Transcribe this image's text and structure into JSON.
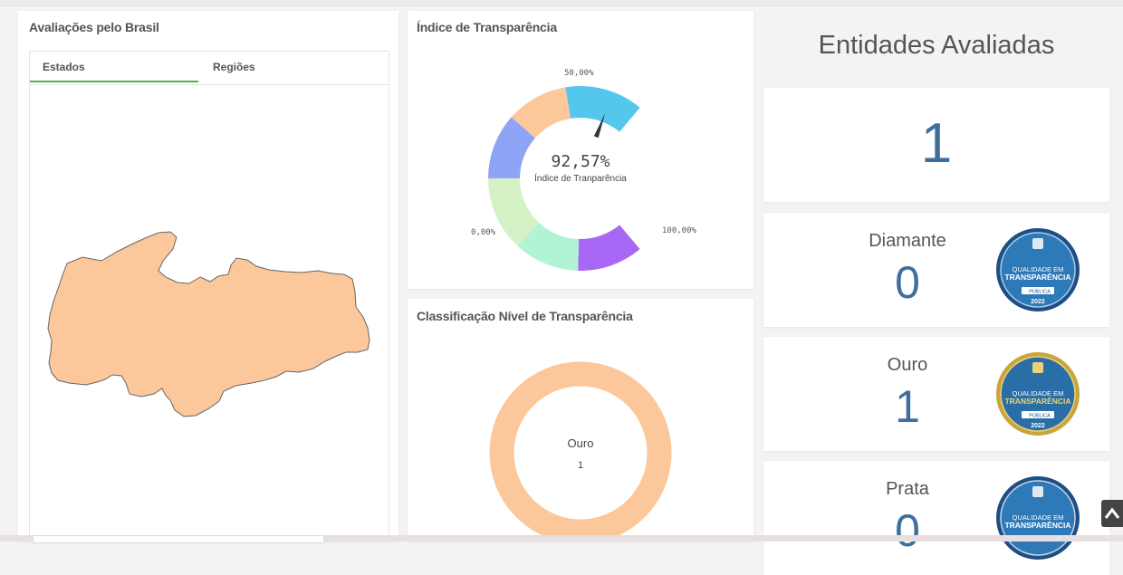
{
  "map_card": {
    "title": "Avaliações pelo Brasil",
    "tabs": [
      {
        "label": "Estados",
        "active": true
      },
      {
        "label": "Regiões",
        "active": false
      }
    ],
    "state_fill": "#fcc89b"
  },
  "gauge_card": {
    "title": "Índice de Transparência",
    "value_text": "92,57%",
    "value": 92.57,
    "subtitle": "Índice de Tranparência",
    "tick_min": "0,00%",
    "tick_mid": "50,00%",
    "tick_max": "100,00%",
    "segment_colors": [
      "#a868f5",
      "#b1f4d4",
      "#d5f2c6",
      "#8ea5f5",
      "#fcc89b",
      "#54c8ec"
    ]
  },
  "donut_card": {
    "title": "Classificação Nível de Transparência",
    "center_label": "Ouro",
    "center_value": "1",
    "ring_color": "#fcc89b"
  },
  "entities": {
    "title": "Entidades Avaliadas",
    "total": "1",
    "levels": [
      {
        "name": "Diamante",
        "count": "0",
        "badge": "diamond-badge"
      },
      {
        "name": "Ouro",
        "count": "1",
        "badge": "gold-badge"
      },
      {
        "name": "Prata",
        "count": "0",
        "badge": "silver-badge"
      }
    ],
    "badge_text": {
      "line1": "QUALIDADE EM",
      "line2": "TRANSPARÊNCIA",
      "line3": "PÚBLICA",
      "year": "2022"
    }
  },
  "colors": {
    "accent_number": "#3f6f9e",
    "tab_underline": "#4caf50"
  },
  "scroll_top_icon": "chevron-up-icon"
}
